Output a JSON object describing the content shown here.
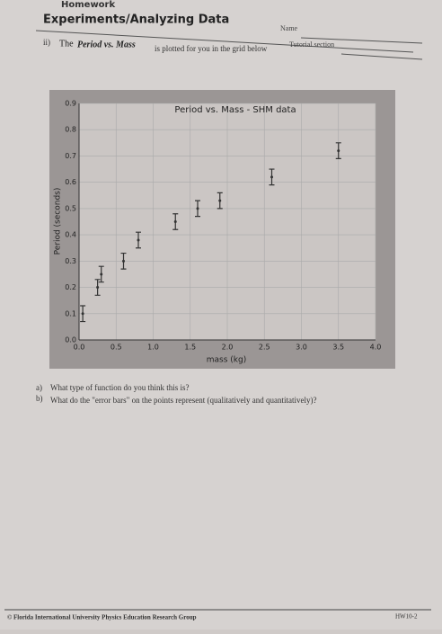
{
  "header": {
    "course": "Homework",
    "title": "Experiments/Analyzing Data",
    "name": "Name",
    "section": "Tutorial section"
  },
  "intro": {
    "number": "ii)",
    "lead": "The",
    "emphasis": "Period vs. Mass",
    "rest": "is plotted for you in the grid below"
  },
  "chart_data": {
    "type": "errorbar",
    "title": "Period vs. Mass - SHM data",
    "xlabel": "mass (kg)",
    "ylabel": "Period (seconds)",
    "x": [
      0.05,
      0.25,
      0.3,
      0.6,
      0.8,
      1.3,
      1.6,
      1.9,
      2.6,
      3.5
    ],
    "values": [
      0.1,
      0.2,
      0.25,
      0.3,
      0.38,
      0.45,
      0.5,
      0.53,
      0.62,
      0.72
    ],
    "errors": [
      0.03,
      0.03,
      0.03,
      0.03,
      0.03,
      0.03,
      0.03,
      0.03,
      0.03,
      0.03
    ],
    "color": "#333333",
    "xlim": [
      0,
      4.0
    ],
    "ylim": [
      0,
      0.9
    ],
    "xticks": [
      {
        "value": 0,
        "label": "0.0"
      },
      0.5,
      {
        "value": 1,
        "label": "1.0"
      },
      1.5,
      {
        "value": 2,
        "label": "2.0"
      },
      2.5,
      {
        "value": 3,
        "label": "3.0"
      },
      3.5,
      {
        "value": 4,
        "label": "4.0"
      }
    ],
    "yticks": [
      {
        "value": 0,
        "label": "0.0"
      },
      0.1,
      0.2,
      0.3,
      0.4,
      0.5,
      0.6,
      0.7,
      0.8,
      0.9
    ],
    "grid": true
  },
  "questions": [
    {
      "label": "a)",
      "text": "What type of function do you think this is?"
    },
    {
      "label": "b)",
      "text": "What do the \"error bars\" on the points represent (qualitatively and quantitatively)?"
    }
  ],
  "footer": {
    "credit": "© Florida International University Physics Education Research Group",
    "code": "HW10-2"
  }
}
